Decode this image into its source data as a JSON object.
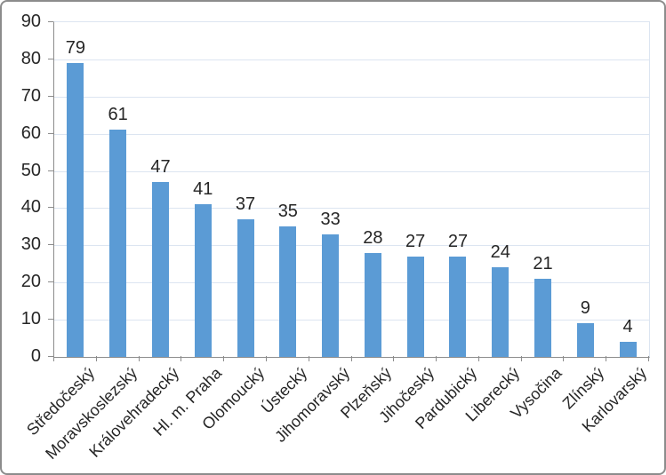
{
  "chart_data": {
    "type": "bar",
    "title": "",
    "xlabel": "",
    "ylabel": "",
    "categories": [
      "Středočeský",
      "Moravskoslezský",
      "Královehradecký",
      "Hl. m. Praha",
      "Olomoucký",
      "Ústecký",
      "Jihomoravský",
      "Plzeňský",
      "Jihočeský",
      "Pardubický",
      "Liberecký",
      "Vysočina",
      "Zlínský",
      "Karlovarský"
    ],
    "values": [
      79,
      61,
      47,
      41,
      37,
      35,
      33,
      28,
      27,
      27,
      24,
      21,
      9,
      4
    ],
    "value_labels": [
      "79",
      "61",
      "47",
      "41",
      "37",
      "35",
      "33",
      "28",
      "27",
      "27",
      "24",
      "21",
      "9",
      "4"
    ],
    "ylim": [
      0,
      90
    ],
    "ytick_step": 10,
    "ytick_labels": [
      "0",
      "10",
      "20",
      "30",
      "40",
      "50",
      "60",
      "70",
      "80",
      "90"
    ],
    "grid": true,
    "legend": false,
    "colors": {
      "bar": "#5B9BD5",
      "gridline": "#DCE5F1",
      "axis": "#8C8C8C",
      "text": "#262626",
      "chart_border": "#8C8C8C",
      "background": "#FFFFFF"
    }
  }
}
